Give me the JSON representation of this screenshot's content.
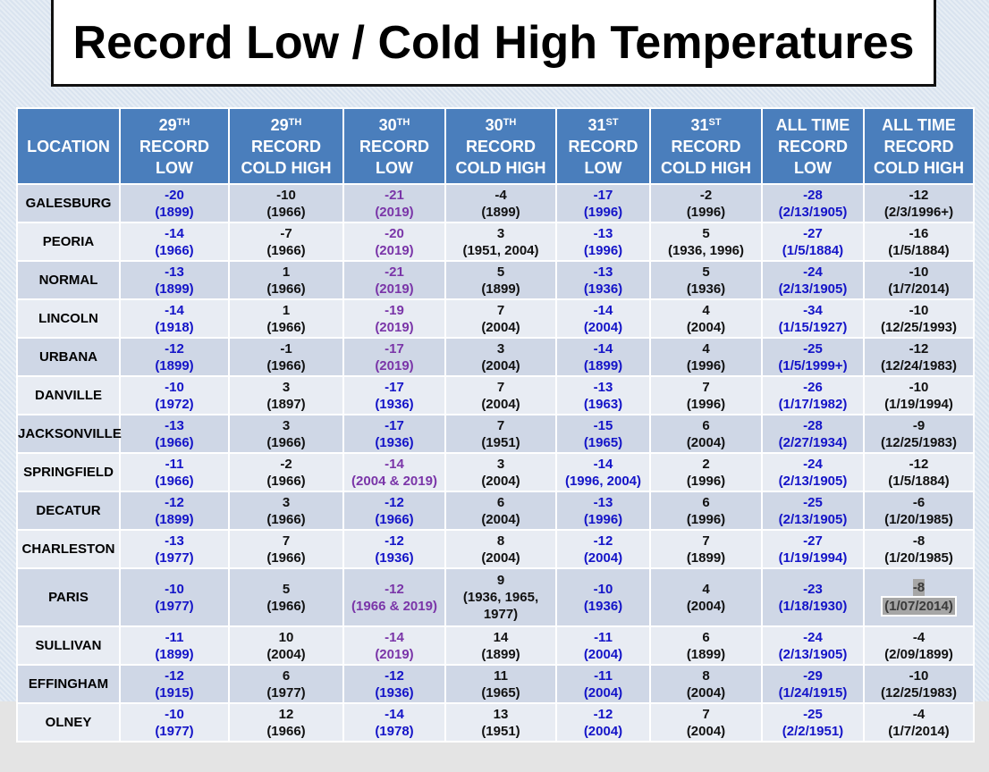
{
  "title": "Record Low / Cold High Temperatures",
  "palette": {
    "b": {
      "color": "#1414c8"
    },
    "k": {
      "color": "#111111"
    },
    "p": {
      "color": "#7a35a8"
    },
    "h": {
      "color": "#3a3a3a",
      "background": "#a6a6a6"
    }
  },
  "table": {
    "header": [
      {
        "text": [
          "LOCATION"
        ]
      },
      {
        "number": "29",
        "suffix": "TH",
        "text": [
          "RECORD",
          "LOW"
        ]
      },
      {
        "number": "29",
        "suffix": "TH",
        "text": [
          "RECORD",
          "COLD HIGH"
        ]
      },
      {
        "number": "30",
        "suffix": "TH",
        "text": [
          "RECORD",
          "LOW"
        ]
      },
      {
        "number": "30",
        "suffix": "TH",
        "text": [
          "RECORD",
          "COLD HIGH"
        ]
      },
      {
        "number": "31",
        "suffix": "ST",
        "text": [
          "RECORD",
          "LOW"
        ]
      },
      {
        "number": "31",
        "suffix": "ST",
        "text": [
          "RECORD",
          "COLD HIGH"
        ]
      },
      {
        "text": [
          "ALL TIME",
          "RECORD",
          "LOW"
        ]
      },
      {
        "text": [
          "ALL TIME",
          "RECORD",
          "COLD HIGH"
        ]
      }
    ],
    "rows": [
      {
        "location": "GALESBURG",
        "cells": [
          [
            "-20",
            "(1899)",
            "b"
          ],
          [
            "-10",
            "(1966)",
            "k"
          ],
          [
            "-21",
            "(2019)",
            "p"
          ],
          [
            "-4",
            "(1899)",
            "k"
          ],
          [
            "-17",
            "(1996)",
            "b"
          ],
          [
            "-2",
            "(1996)",
            "k"
          ],
          [
            "-28",
            "(2/13/1905)",
            "b"
          ],
          [
            "-12",
            "(2/3/1996+)",
            "k"
          ]
        ]
      },
      {
        "location": "PEORIA",
        "cells": [
          [
            "-14",
            "(1966)",
            "b"
          ],
          [
            "-7",
            "(1966)",
            "k"
          ],
          [
            "-20",
            "(2019)",
            "p"
          ],
          [
            "3",
            "(1951, 2004)",
            "k"
          ],
          [
            "-13",
            "(1996)",
            "b"
          ],
          [
            "5",
            "(1936, 1996)",
            "k"
          ],
          [
            "-27",
            "(1/5/1884)",
            "b"
          ],
          [
            "-16",
            "(1/5/1884)",
            "k"
          ]
        ]
      },
      {
        "location": "NORMAL",
        "cells": [
          [
            "-13",
            "(1899)",
            "b"
          ],
          [
            "1",
            "(1966)",
            "k"
          ],
          [
            "-21",
            "(2019)",
            "p"
          ],
          [
            "5",
            "(1899)",
            "k"
          ],
          [
            "-13",
            "(1936)",
            "b"
          ],
          [
            "5",
            "(1936)",
            "k"
          ],
          [
            "-24",
            "(2/13/1905)",
            "b"
          ],
          [
            "-10",
            "(1/7/2014)",
            "k"
          ]
        ]
      },
      {
        "location": "LINCOLN",
        "cells": [
          [
            "-14",
            "(1918)",
            "b"
          ],
          [
            "1",
            "(1966)",
            "k"
          ],
          [
            "-19",
            "(2019)",
            "p"
          ],
          [
            "7",
            "(2004)",
            "k"
          ],
          [
            "-14",
            "(2004)",
            "b"
          ],
          [
            "4",
            "(2004)",
            "k"
          ],
          [
            "-34",
            "(1/15/1927)",
            "b"
          ],
          [
            "-10",
            "(12/25/1993)",
            "k"
          ]
        ]
      },
      {
        "location": "URBANA",
        "cells": [
          [
            "-12",
            "(1899)",
            "b"
          ],
          [
            "-1",
            "(1966)",
            "k"
          ],
          [
            "-17",
            "(2019)",
            "p"
          ],
          [
            "3",
            "(2004)",
            "k"
          ],
          [
            "-14",
            "(1899)",
            "b"
          ],
          [
            "4",
            "(1996)",
            "k"
          ],
          [
            "-25",
            "(1/5/1999+)",
            "b"
          ],
          [
            "-12",
            "(12/24/1983)",
            "k"
          ]
        ]
      },
      {
        "location": "DANVILLE",
        "cells": [
          [
            "-10",
            "(1972)",
            "b"
          ],
          [
            "3",
            "(1897)",
            "k"
          ],
          [
            "-17",
            "(1936)",
            "b"
          ],
          [
            "7",
            "(2004)",
            "k"
          ],
          [
            "-13",
            "(1963)",
            "b"
          ],
          [
            "7",
            "(1996)",
            "k"
          ],
          [
            "-26",
            "(1/17/1982)",
            "b"
          ],
          [
            "-10",
            "(1/19/1994)",
            "k"
          ]
        ]
      },
      {
        "location": "JACKSONVILLE",
        "cells": [
          [
            "-13",
            "(1966)",
            "b"
          ],
          [
            "3",
            "(1966)",
            "k"
          ],
          [
            "-17",
            "(1936)",
            "b"
          ],
          [
            "7",
            "(1951)",
            "k"
          ],
          [
            "-15",
            "(1965)",
            "b"
          ],
          [
            "6",
            "(2004)",
            "k"
          ],
          [
            "-28",
            "(2/27/1934)",
            "b"
          ],
          [
            "-9",
            "(12/25/1983)",
            "k"
          ]
        ]
      },
      {
        "location": "SPRINGFIELD",
        "cells": [
          [
            "-11",
            "(1966)",
            "b"
          ],
          [
            "-2",
            "(1966)",
            "k"
          ],
          [
            "-14",
            "(2004 & 2019)",
            "p"
          ],
          [
            "3",
            "(2004)",
            "k"
          ],
          [
            "-14",
            "(1996, 2004)",
            "b"
          ],
          [
            "2",
            "(1996)",
            "k"
          ],
          [
            "-24",
            "(2/13/1905)",
            "b"
          ],
          [
            "-12",
            "(1/5/1884)",
            "k"
          ]
        ]
      },
      {
        "location": "DECATUR",
        "cells": [
          [
            "-12",
            "(1899)",
            "b"
          ],
          [
            "3",
            "(1966)",
            "k"
          ],
          [
            "-12",
            "(1966)",
            "b"
          ],
          [
            "6",
            "(2004)",
            "k"
          ],
          [
            "-13",
            "(1996)",
            "b"
          ],
          [
            "6",
            "(1996)",
            "k"
          ],
          [
            "-25",
            "(2/13/1905)",
            "b"
          ],
          [
            "-6",
            "(1/20/1985)",
            "k"
          ]
        ]
      },
      {
        "location": "CHARLESTON",
        "cells": [
          [
            "-13",
            "(1977)",
            "b"
          ],
          [
            "7",
            "(1966)",
            "k"
          ],
          [
            "-12",
            "(1936)",
            "b"
          ],
          [
            "8",
            "(2004)",
            "k"
          ],
          [
            "-12",
            "(2004)",
            "b"
          ],
          [
            "7",
            "(1899)",
            "k"
          ],
          [
            "-27",
            "(1/19/1994)",
            "b"
          ],
          [
            "-8",
            "(1/20/1985)",
            "k"
          ]
        ]
      },
      {
        "location": "PARIS",
        "cells": [
          [
            "-10",
            "(1977)",
            "b"
          ],
          [
            "5",
            "(1966)",
            "k"
          ],
          [
            "-12",
            "(1966 & 2019)",
            "p"
          ],
          [
            "9",
            "(1936, 1965, 1977)",
            "k"
          ],
          [
            "-10",
            "(1936)",
            "b"
          ],
          [
            "4",
            "(2004)",
            "k"
          ],
          [
            "-23",
            "(1/18/1930)",
            "b"
          ],
          [
            "-8",
            "(1/07/2014)",
            "h"
          ]
        ]
      },
      {
        "location": "SULLIVAN",
        "cells": [
          [
            "-11",
            "(1899)",
            "b"
          ],
          [
            "10",
            "(2004)",
            "k"
          ],
          [
            "-14",
            "(2019)",
            "p"
          ],
          [
            "14",
            "(1899)",
            "k"
          ],
          [
            "-11",
            "(2004)",
            "b"
          ],
          [
            "6",
            "(1899)",
            "k"
          ],
          [
            "-24",
            "(2/13/1905)",
            "b"
          ],
          [
            "-4",
            "(2/09/1899)",
            "k"
          ]
        ]
      },
      {
        "location": "EFFINGHAM",
        "cells": [
          [
            "-12",
            "(1915)",
            "b"
          ],
          [
            "6",
            "(1977)",
            "k"
          ],
          [
            "-12",
            "(1936)",
            "b"
          ],
          [
            "11",
            "(1965)",
            "k"
          ],
          [
            "-11",
            "(2004)",
            "b"
          ],
          [
            "8",
            "(2004)",
            "k"
          ],
          [
            "-29",
            "(1/24/1915)",
            "b"
          ],
          [
            "-10",
            "(12/25/1983)",
            "k"
          ]
        ]
      },
      {
        "location": "OLNEY",
        "cells": [
          [
            "-10",
            "(1977)",
            "b"
          ],
          [
            "12",
            "(1966)",
            "k"
          ],
          [
            "-14",
            "(1978)",
            "b"
          ],
          [
            "13",
            "(1951)",
            "k"
          ],
          [
            "-12",
            "(2004)",
            "b"
          ],
          [
            "7",
            "(2004)",
            "k"
          ],
          [
            "-25",
            "(2/2/1951)",
            "b"
          ],
          [
            "-4",
            "(1/7/2014)",
            "k"
          ]
        ]
      }
    ]
  }
}
